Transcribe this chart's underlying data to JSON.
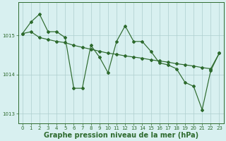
{
  "hours": [
    0,
    1,
    2,
    3,
    4,
    5,
    6,
    7,
    8,
    9,
    10,
    11,
    12,
    13,
    14,
    15,
    16,
    17,
    18,
    19,
    20,
    21,
    22,
    23
  ],
  "line1": [
    1015.05,
    1015.35,
    1015.55,
    1015.1,
    1015.1,
    1014.95,
    1013.65,
    1013.65,
    1014.75,
    1014.45,
    1014.05,
    1014.85,
    1015.25,
    1014.85,
    1014.85,
    1014.6,
    1014.3,
    1014.25,
    1014.15,
    1013.8,
    1013.7,
    1013.1,
    1014.1,
    1014.55
  ],
  "line2": [
    1015.05,
    1015.1,
    1014.95,
    1014.9,
    1014.85,
    1014.82,
    1014.75,
    1014.7,
    1014.65,
    1014.6,
    1014.55,
    1014.52,
    1014.48,
    1014.45,
    1014.42,
    1014.38,
    1014.35,
    1014.32,
    1014.28,
    1014.25,
    1014.22,
    1014.18,
    1014.15,
    1014.55
  ],
  "line_color": "#2d6a2d",
  "bg_color": "#d8f0f0",
  "grid_color": "#aecece",
  "xlabel": "Graphe pression niveau de la mer (hPa)",
  "ylim": [
    1012.75,
    1015.85
  ],
  "yticks": [
    1013,
    1014,
    1015
  ],
  "xticks": [
    0,
    1,
    2,
    3,
    4,
    5,
    6,
    7,
    8,
    9,
    10,
    11,
    12,
    13,
    14,
    15,
    16,
    17,
    18,
    19,
    20,
    21,
    22,
    23
  ],
  "tick_fontsize": 5.0,
  "xlabel_fontsize": 7.0,
  "linewidth": 0.85,
  "markersize": 2.0
}
